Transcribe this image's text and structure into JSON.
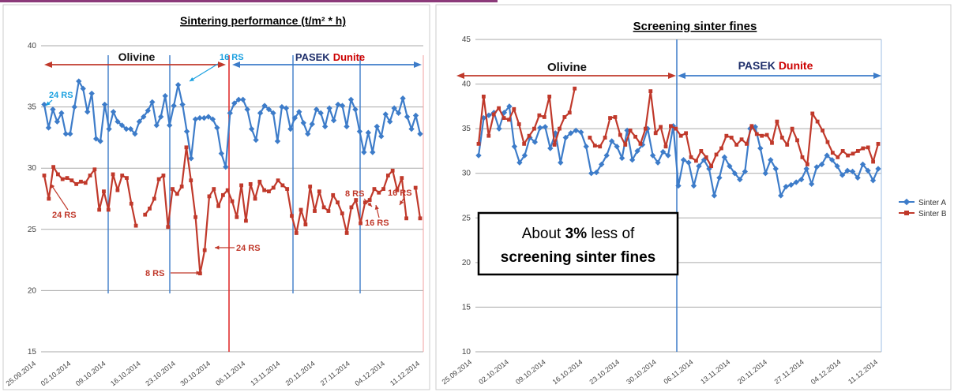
{
  "colors": {
    "sinter_a": "#3d7cc9",
    "sinter_b": "#c0392b",
    "olivine_arrow": "#c0392b",
    "dunite_arrow": "#3d7cc9",
    "pasek_text": "#1f2f6b",
    "dunite_text": "#cc0000",
    "rs_blue": "#1aa0e0",
    "rs_red": "#c0392b",
    "grid": "#aaaaaa",
    "top_stripe": "#8c3a7a"
  },
  "left_chart": {
    "title": "Sintering performance (t/m² * h)",
    "region_labels": {
      "olivine": "Olivine",
      "pasek": "PASEK",
      "dunite": "Dunite"
    },
    "annotations": {
      "rs_24_top": "24 RS",
      "rs_16_top": "16 RS",
      "rs_24_mid": "24 RS",
      "rs_8_low": "8 RS",
      "rs_24_low": "24 RS",
      "rs_8_right": "8 RS",
      "rs_16_right_top": "16 RS",
      "rs_16_right_low": "16 RS"
    }
  },
  "right_chart": {
    "title": "Screening sinter fines",
    "region_labels": {
      "olivine": "Olivine",
      "pasek": "PASEK",
      "dunite": "Dunite"
    },
    "note_pre": "About ",
    "note_bold": "3%",
    "note_post": " less of",
    "note_line2": "screening sinter fines",
    "legend": [
      "Sinter A",
      "Sinter B"
    ]
  },
  "chart_data": [
    {
      "type": "line",
      "title": "Sintering performance (t/m² * h)",
      "x_tick_labels": [
        "25.09.2014",
        "02.10.2014",
        "09.10.2014",
        "16.10.2014",
        "23.10.2014",
        "30.10.2014",
        "06.11.2014",
        "13.11.2014",
        "20.11.2014",
        "27.11.2014",
        "04.12.2014",
        "11.12.2014"
      ],
      "ylim": [
        15,
        40
      ],
      "y_ticks": [
        15,
        20,
        25,
        30,
        35,
        40
      ],
      "series": [
        {
          "values": [
            35.2,
            33.3,
            34.8,
            33.8,
            34.5,
            32.8,
            32.8,
            35.0,
            37.1,
            36.5,
            34.6,
            36.1,
            32.4,
            32.2,
            35.2,
            33.2,
            34.6,
            33.8,
            33.5,
            33.2,
            33.2,
            32.8,
            33.8,
            34.2,
            34.7,
            35.4,
            33.5,
            34.2,
            35.9,
            33.5,
            35.1,
            36.8,
            35.2,
            33.0,
            30.8,
            34.0,
            34.1,
            34.1,
            34.2,
            34.0,
            33.3,
            31.2,
            30.1,
            34.5,
            35.3,
            35.6,
            35.6,
            34.8,
            33.2,
            32.3,
            34.5,
            35.1,
            34.8,
            34.5,
            32.2,
            35.0,
            34.9,
            33.2,
            34.1,
            34.6,
            33.7,
            32.8,
            33.6,
            34.8,
            34.5,
            33.4,
            34.9,
            33.9,
            35.2,
            35.1,
            33.4,
            35.6,
            34.8,
            33.0,
            31.3,
            32.9,
            31.3,
            33.4,
            32.6,
            34.4,
            33.8,
            34.9,
            34.5,
            35.7,
            34.2,
            33.2,
            34.3,
            32.8
          ]
        },
        {
          "values": [
            29.4,
            27.5,
            30.1,
            29.5,
            29.1,
            29.2,
            29.0,
            28.7,
            28.9,
            28.8,
            29.4,
            29.9,
            26.6,
            28.1,
            26.6,
            29.5,
            28.2,
            29.4,
            29.2,
            27.1,
            25.3,
            null,
            26.2,
            26.7,
            27.5,
            29.1,
            29.4,
            25.2,
            28.3,
            27.9,
            28.5,
            31.7,
            29.0,
            26.0,
            21.4,
            23.3,
            27.7,
            28.3,
            26.9,
            27.8,
            28.2,
            27.3,
            26.0,
            28.6,
            25.7,
            28.7,
            27.5,
            28.9,
            28.2,
            28.1,
            28.4,
            29.0,
            28.6,
            28.3,
            26.1,
            24.7,
            26.6,
            25.4,
            28.5,
            26.5,
            28.1,
            26.8,
            26.5,
            27.8,
            27.2,
            26.3,
            24.7,
            26.8,
            27.4,
            25.5,
            27.2,
            27.4,
            28.3,
            28.0,
            28.3,
            29.4,
            29.8,
            28.2,
            29.2,
            25.9,
            null,
            28.4,
            25.9
          ]
        }
      ]
    },
    {
      "type": "line",
      "title": "Screening sinter fines",
      "x_tick_labels": [
        "25.09.2014",
        "02.10.2014",
        "09.10.2014",
        "16.10.2014",
        "23.10.2014",
        "30.10.2014",
        "06.11.2014",
        "13.11.2014",
        "20.11.2014",
        "27.11.2014",
        "04.12.2014",
        "11.12.2014"
      ],
      "ylim": [
        10,
        45
      ],
      "y_ticks": [
        10,
        15,
        20,
        25,
        30,
        35,
        40,
        45
      ],
      "legend_position": "right",
      "series": [
        {
          "name": "Sinter A",
          "values": [
            32.0,
            36.2,
            36.5,
            36.8,
            35.0,
            36.8,
            37.5,
            33.0,
            31.2,
            32.0,
            34.0,
            33.5,
            35.1,
            35.2,
            32.8,
            34.5,
            31.2,
            34.0,
            34.5,
            34.8,
            34.6,
            33.0,
            30.0,
            30.1,
            31.0,
            32.0,
            33.6,
            33.0,
            31.7,
            34.8,
            31.5,
            32.5,
            33.2,
            35.0,
            32.0,
            31.2,
            32.4,
            32.0,
            35.3,
            28.6,
            31.5,
            31.2,
            28.6,
            30.8,
            31.5,
            30.5,
            27.5,
            29.5,
            31.8,
            30.8,
            30.0,
            29.3,
            30.2,
            35.0,
            35.2,
            32.8,
            30.0,
            31.5,
            30.5,
            27.5,
            28.5,
            28.7,
            29.0,
            29.3,
            30.5,
            28.8,
            30.7,
            31.0,
            32.0,
            31.5,
            30.8,
            29.8,
            30.3,
            30.2,
            29.5,
            31.0,
            30.3,
            29.2,
            30.5
          ]
        },
        {
          "name": "Sinter B",
          "values": [
            33.3,
            38.6,
            34.2,
            36.6,
            37.3,
            36.2,
            36.0,
            37.2,
            35.5,
            33.3,
            34.2,
            35.0,
            36.5,
            36.3,
            38.6,
            33.2,
            35.0,
            36.3,
            36.8,
            39.5,
            null,
            null,
            34.0,
            33.1,
            33.0,
            34.0,
            36.2,
            36.3,
            34.3,
            33.2,
            34.8,
            34.1,
            33.3,
            35.0,
            39.2,
            34.5,
            35.2,
            33.0,
            35.3,
            35.0,
            34.2,
            34.5,
            31.8,
            31.4,
            32.5,
            31.8,
            30.8,
            32.1,
            32.8,
            34.2,
            34.0,
            33.2,
            33.8,
            33.3,
            35.3,
            34.4,
            34.2,
            34.3,
            33.4,
            35.8,
            34.0,
            33.2,
            35.0,
            33.7,
            31.8,
            31.0,
            36.7,
            35.8,
            34.8,
            33.5,
            32.3,
            31.8,
            32.5,
            32.0,
            32.2,
            32.5,
            32.8,
            32.9,
            31.3,
            33.3
          ]
        }
      ]
    }
  ]
}
